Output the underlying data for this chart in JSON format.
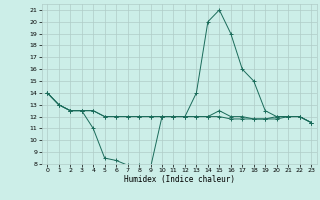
{
  "title": "",
  "xlabel": "Humidex (Indice chaleur)",
  "bg_color": "#cceee8",
  "grid_color": "#b0ccc8",
  "line_color": "#1a6b5a",
  "xlim": [
    -0.5,
    23.5
  ],
  "ylim": [
    8,
    21.5
  ],
  "yticks": [
    8,
    9,
    10,
    11,
    12,
    13,
    14,
    15,
    16,
    17,
    18,
    19,
    20,
    21
  ],
  "xticks": [
    0,
    1,
    2,
    3,
    4,
    5,
    6,
    7,
    8,
    9,
    10,
    11,
    12,
    13,
    14,
    15,
    16,
    17,
    18,
    19,
    20,
    21,
    22,
    23
  ],
  "series": [
    [
      14,
      13,
      12.5,
      12.5,
      11,
      8.5,
      8.3,
      7.9,
      7.9,
      7.7,
      12,
      12,
      12,
      14,
      20,
      21,
      19,
      16,
      15,
      12.5,
      12,
      12,
      12,
      11.5
    ],
    [
      14,
      13,
      12.5,
      12.5,
      12.5,
      12,
      12,
      12,
      12,
      12,
      12,
      12,
      12,
      12,
      12,
      12.5,
      12,
      12,
      11.8,
      11.8,
      12,
      12,
      12,
      11.5
    ],
    [
      14,
      13,
      12.5,
      12.5,
      12.5,
      12,
      12,
      12,
      12,
      12,
      12,
      12,
      12,
      12,
      12,
      12,
      11.8,
      11.8,
      11.8,
      11.8,
      11.8,
      12,
      12,
      11.5
    ]
  ]
}
